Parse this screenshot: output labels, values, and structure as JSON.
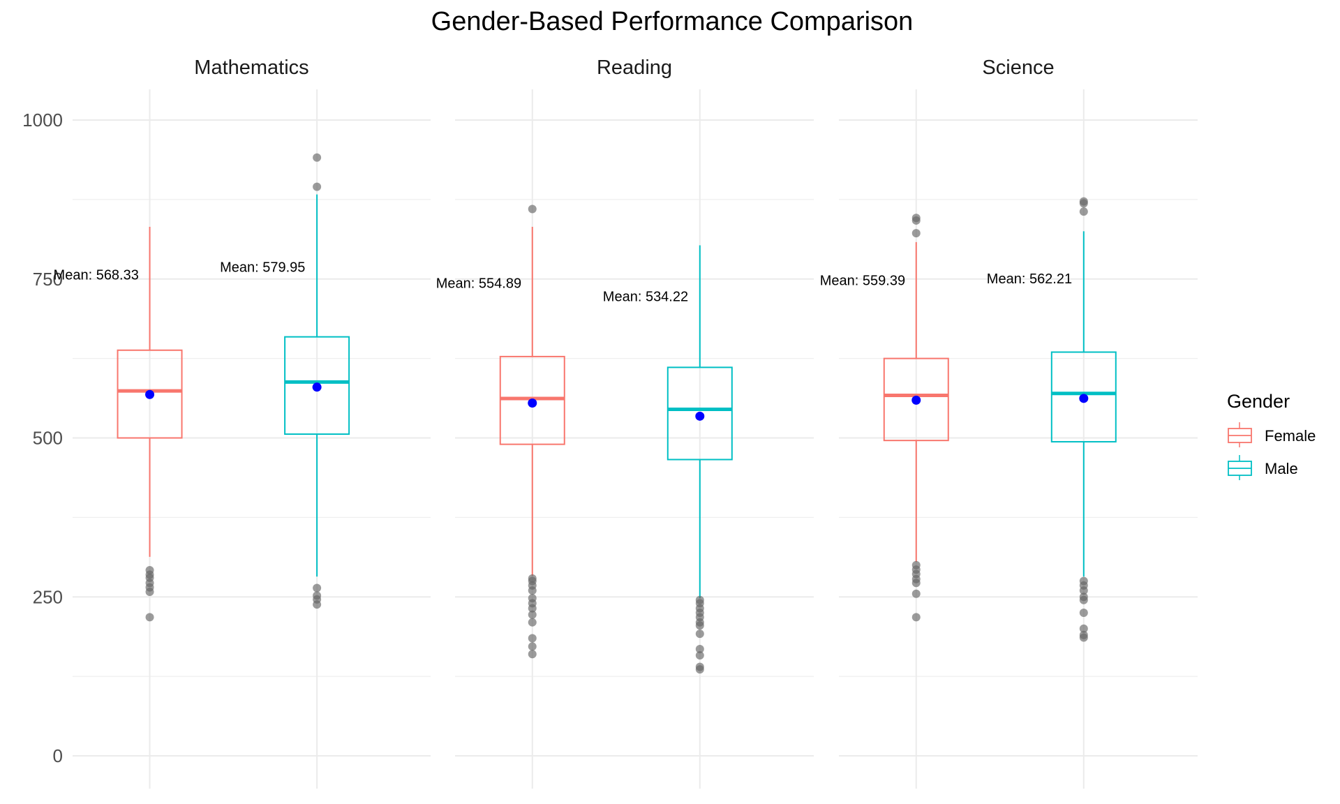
{
  "chart_data": {
    "type": "box",
    "title": "Gender-Based Performance Comparison",
    "ylim": [
      0,
      1050
    ],
    "y_ticks": [
      "0",
      "250",
      "500",
      "750",
      "1000"
    ],
    "grid": true,
    "legend": {
      "title": "Gender",
      "position": "right",
      "entries": [
        "Female",
        "Male"
      ]
    },
    "colors": {
      "Female": "#F8766D",
      "Male": "#00BFC4",
      "mean_point": "#0000FF",
      "outlier": "#666666"
    },
    "panels": [
      {
        "name": "Mathematics",
        "groups": [
          {
            "group": "Female",
            "q1": 500,
            "median": 574,
            "q3": 638,
            "whisker_low": 313,
            "whisker_high": 832,
            "mean": 568.33,
            "mean_label": "Mean: 568.33",
            "outliers": [
              292,
              285,
              280,
              272,
              265,
              258,
              218
            ]
          },
          {
            "group": "Male",
            "q1": 506,
            "median": 588,
            "q3": 659,
            "whisker_low": 282,
            "whisker_high": 883,
            "mean": 579.95,
            "mean_label": "Mean: 579.95",
            "outliers": [
              941,
              895,
              264,
              252,
              246,
              238
            ]
          }
        ]
      },
      {
        "name": "Reading",
        "groups": [
          {
            "group": "Female",
            "q1": 490,
            "median": 562,
            "q3": 628,
            "whisker_low": 283,
            "whisker_high": 832,
            "mean": 554.89,
            "mean_label": "Mean: 554.89",
            "outliers": [
              860,
              279,
              275,
              268,
              260,
              248,
              240,
              232,
              222,
              210,
              185,
              172,
              160
            ]
          },
          {
            "group": "Male",
            "q1": 466,
            "median": 545,
            "q3": 611,
            "whisker_low": 248,
            "whisker_high": 803,
            "mean": 534.22,
            "mean_label": "Mean: 534.22",
            "outliers": [
              245,
              240,
              232,
              225,
              218,
              210,
              205,
              192,
              168,
              158,
              140,
              136
            ]
          }
        ]
      },
      {
        "name": "Science",
        "groups": [
          {
            "group": "Female",
            "q1": 496,
            "median": 567,
            "q3": 625,
            "whisker_low": 305,
            "whisker_high": 808,
            "mean": 559.39,
            "mean_label": "Mean: 559.39",
            "outliers": [
              846,
              842,
              822,
              300,
              293,
              286,
              278,
              272,
              255,
              218
            ]
          },
          {
            "group": "Male",
            "q1": 494,
            "median": 570,
            "q3": 635,
            "whisker_low": 282,
            "whisker_high": 825,
            "mean": 562.21,
            "mean_label": "Mean: 562.21",
            "outliers": [
              872,
              869,
              856,
              275,
              268,
              260,
              250,
              245,
              225,
              200,
              190,
              186
            ]
          }
        ]
      }
    ]
  }
}
